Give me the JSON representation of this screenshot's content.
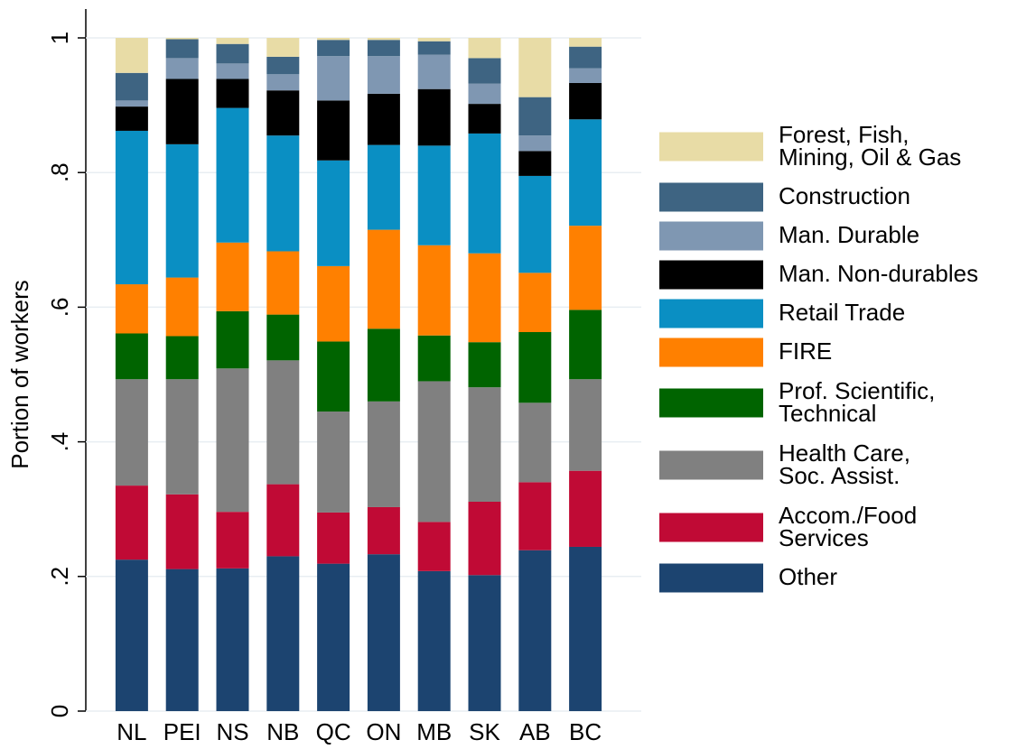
{
  "chart_data": {
    "type": "stacked_bar",
    "ylabel": "Portion of workers",
    "categories": [
      "NL",
      "PEI",
      "NS",
      "NB",
      "QC",
      "ON",
      "MB",
      "SK",
      "AB",
      "BC"
    ],
    "ylim": [
      0,
      1
    ],
    "yticks": [
      0,
      {
        "value": 0.2,
        "label": ".2"
      },
      {
        "value": 0.4,
        "label": ".4"
      },
      {
        "value": 0.6,
        "label": ".6"
      },
      {
        "value": 0.8,
        "label": ".8"
      },
      1
    ],
    "grid": true,
    "legend": "right",
    "series": [
      {
        "name": "Other",
        "color": "#1c4470",
        "values": [
          0.225,
          0.211,
          0.212,
          0.23,
          0.219,
          0.233,
          0.208,
          0.202,
          0.239,
          0.244
        ]
      },
      {
        "name": "Accom./Food\nServices",
        "color": "#c00a35",
        "values": [
          0.11,
          0.111,
          0.084,
          0.107,
          0.076,
          0.07,
          0.073,
          0.109,
          0.101,
          0.113
        ]
      },
      {
        "name": "Health Care,\nSoc. Assist.",
        "color": "#808080",
        "values": [
          0.158,
          0.171,
          0.213,
          0.184,
          0.15,
          0.157,
          0.209,
          0.17,
          0.118,
          0.136
        ]
      },
      {
        "name": "Prof. Scientific,\nTechnical",
        "color": "#006400",
        "values": [
          0.068,
          0.064,
          0.085,
          0.068,
          0.104,
          0.108,
          0.068,
          0.067,
          0.105,
          0.103
        ]
      },
      {
        "name": "FIRE",
        "color": "#ff8000",
        "values": [
          0.073,
          0.087,
          0.102,
          0.094,
          0.112,
          0.147,
          0.134,
          0.132,
          0.088,
          0.125
        ]
      },
      {
        "name": "Retail Trade",
        "color": "#0a8fc3",
        "values": [
          0.228,
          0.198,
          0.2,
          0.172,
          0.157,
          0.126,
          0.148,
          0.178,
          0.144,
          0.158
        ]
      },
      {
        "name": "Man. Non-durables",
        "color": "#000000",
        "values": [
          0.036,
          0.097,
          0.043,
          0.067,
          0.089,
          0.076,
          0.084,
          0.044,
          0.037,
          0.054
        ]
      },
      {
        "name": "Man. Durable",
        "color": "#7f97b2",
        "values": [
          0.009,
          0.031,
          0.023,
          0.024,
          0.066,
          0.056,
          0.051,
          0.03,
          0.023,
          0.022
        ]
      },
      {
        "name": "Construction",
        "color": "#3e6482",
        "values": [
          0.041,
          0.028,
          0.029,
          0.026,
          0.024,
          0.024,
          0.02,
          0.038,
          0.057,
          0.032
        ]
      },
      {
        "name": "Forest, Fish,\nMining, Oil & Gas",
        "color": "#e8dca6",
        "values": [
          0.052,
          0.002,
          0.009,
          0.028,
          0.003,
          0.003,
          0.005,
          0.03,
          0.088,
          0.013
        ]
      }
    ]
  }
}
